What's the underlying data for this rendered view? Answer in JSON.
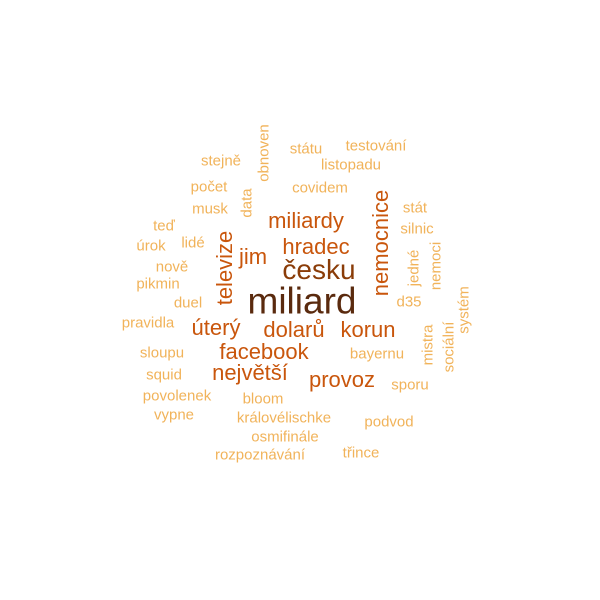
{
  "palette": {
    "darkest": "#5a2a0e",
    "dark": "#8a3c08",
    "strong": "#c9560c",
    "medium": "#e08a22",
    "light": "#f1b35a",
    "pale": "#f7cd82"
  },
  "words": [
    {
      "text": "miliard",
      "tone": "darkest",
      "rotated": false
    },
    {
      "text": "česku",
      "tone": "dark",
      "rotated": false
    },
    {
      "text": "hradec",
      "tone": "strong",
      "rotated": false
    },
    {
      "text": "miliardy",
      "tone": "strong",
      "rotated": false
    },
    {
      "text": "jim",
      "tone": "strong",
      "rotated": false
    },
    {
      "text": "televize",
      "tone": "strong",
      "rotated": true
    },
    {
      "text": "nemocnice",
      "tone": "strong",
      "rotated": true
    },
    {
      "text": "úterý",
      "tone": "strong",
      "rotated": false
    },
    {
      "text": "dolarů",
      "tone": "strong",
      "rotated": false
    },
    {
      "text": "korun",
      "tone": "strong",
      "rotated": false
    },
    {
      "text": "facebook",
      "tone": "strong",
      "rotated": false
    },
    {
      "text": "největší",
      "tone": "strong",
      "rotated": false
    },
    {
      "text": "provoz",
      "tone": "strong",
      "rotated": false
    },
    {
      "text": "obnoven",
      "tone": "light",
      "rotated": true
    },
    {
      "text": "státu",
      "tone": "light",
      "rotated": false
    },
    {
      "text": "testování",
      "tone": "light",
      "rotated": false
    },
    {
      "text": "stejně",
      "tone": "light",
      "rotated": false
    },
    {
      "text": "listopadu",
      "tone": "light",
      "rotated": false
    },
    {
      "text": "počet",
      "tone": "light",
      "rotated": false
    },
    {
      "text": "data",
      "tone": "light",
      "rotated": true
    },
    {
      "text": "covidem",
      "tone": "light",
      "rotated": false
    },
    {
      "text": "musk",
      "tone": "light",
      "rotated": false
    },
    {
      "text": "stát",
      "tone": "light",
      "rotated": false
    },
    {
      "text": "teď",
      "tone": "light",
      "rotated": false
    },
    {
      "text": "silnic",
      "tone": "light",
      "rotated": false
    },
    {
      "text": "úrok",
      "tone": "light",
      "rotated": false
    },
    {
      "text": "lidé",
      "tone": "light",
      "rotated": false
    },
    {
      "text": "jedné",
      "tone": "light",
      "rotated": true
    },
    {
      "text": "nemoci",
      "tone": "light",
      "rotated": true
    },
    {
      "text": "nově",
      "tone": "light",
      "rotated": false
    },
    {
      "text": "pikmin",
      "tone": "light",
      "rotated": false
    },
    {
      "text": "duel",
      "tone": "light",
      "rotated": false
    },
    {
      "text": "d35",
      "tone": "light",
      "rotated": false
    },
    {
      "text": "systém",
      "tone": "light",
      "rotated": true
    },
    {
      "text": "pravidla",
      "tone": "light",
      "rotated": false
    },
    {
      "text": "mistra",
      "tone": "light",
      "rotated": true
    },
    {
      "text": "sociální",
      "tone": "light",
      "rotated": true
    },
    {
      "text": "sloupu",
      "tone": "light",
      "rotated": false
    },
    {
      "text": "bayernu",
      "tone": "light",
      "rotated": false
    },
    {
      "text": "squid",
      "tone": "light",
      "rotated": false
    },
    {
      "text": "sporu",
      "tone": "light",
      "rotated": false
    },
    {
      "text": "povolenek",
      "tone": "light",
      "rotated": false
    },
    {
      "text": "bloom",
      "tone": "light",
      "rotated": false
    },
    {
      "text": "vypne",
      "tone": "light",
      "rotated": false
    },
    {
      "text": "královélischke",
      "tone": "light",
      "rotated": false
    },
    {
      "text": "podvod",
      "tone": "light",
      "rotated": false
    },
    {
      "text": "osmifinále",
      "tone": "light",
      "rotated": false
    },
    {
      "text": "rozpoznávání",
      "tone": "light",
      "rotated": false
    },
    {
      "text": "třince",
      "tone": "light",
      "rotated": false
    }
  ]
}
